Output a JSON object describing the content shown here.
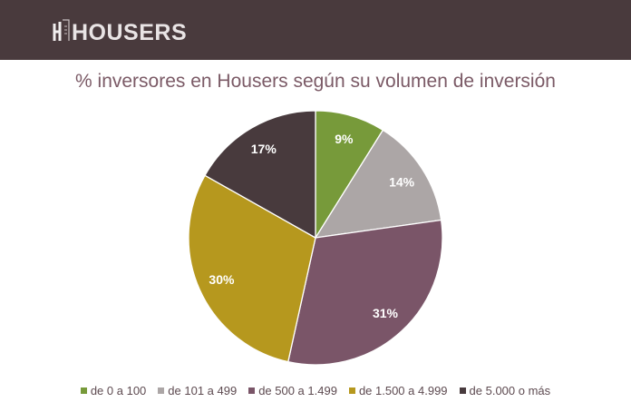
{
  "header": {
    "logo_text": "HOUSERS",
    "background_color": "#493a3d"
  },
  "chart_data": {
    "type": "pie",
    "title": "% inversores en Housers según su volumen de inversión",
    "legend_position": "bottom",
    "categories": [
      "de 0 a 100",
      "de 101 a 499",
      "de 500 a 1.499",
      "de 1.500 a 4.999",
      "de 5.000 o más"
    ],
    "values": [
      9,
      14,
      31,
      30,
      17
    ],
    "labels": [
      "9%",
      "14%",
      "31%",
      "30%",
      "17%"
    ],
    "colors": [
      "#779a3a",
      "#aca6a6",
      "#7a5568",
      "#b6981e",
      "#483a3d"
    ]
  }
}
